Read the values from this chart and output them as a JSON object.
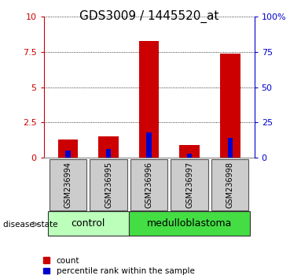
{
  "title": "GDS3009 / 1445520_at",
  "samples": [
    "GSM236994",
    "GSM236995",
    "GSM236996",
    "GSM236997",
    "GSM236998"
  ],
  "count_values": [
    1.3,
    1.5,
    8.3,
    0.9,
    7.4
  ],
  "percentile_values": [
    5,
    6,
    18,
    3,
    14
  ],
  "left_ylim": [
    0,
    10
  ],
  "right_ylim": [
    0,
    100
  ],
  "left_yticks": [
    0,
    2.5,
    5,
    7.5,
    10
  ],
  "right_yticks": [
    0,
    25,
    50,
    75,
    100
  ],
  "left_yticklabels": [
    "0",
    "2.5",
    "5",
    "7.5",
    "10"
  ],
  "right_yticklabels": [
    "0",
    "25",
    "50",
    "75",
    "100%"
  ],
  "red_color": "#cc0000",
  "blue_color": "#0000cc",
  "grid_color": "black",
  "groups": [
    {
      "label": "control",
      "indices": [
        0,
        1
      ],
      "color": "#bbffbb"
    },
    {
      "label": "medulloblastoma",
      "indices": [
        2,
        3,
        4
      ],
      "color": "#44dd44"
    }
  ],
  "disease_state_label": "disease state",
  "legend_entries": [
    "count",
    "percentile rank within the sample"
  ],
  "xlabel_box_color": "#cccccc",
  "xlabel_box_edge": "#555555",
  "title_fontsize": 11,
  "tick_fontsize": 8,
  "label_fontsize": 8,
  "group_label_fontsize": 9,
  "sample_fontsize": 7
}
